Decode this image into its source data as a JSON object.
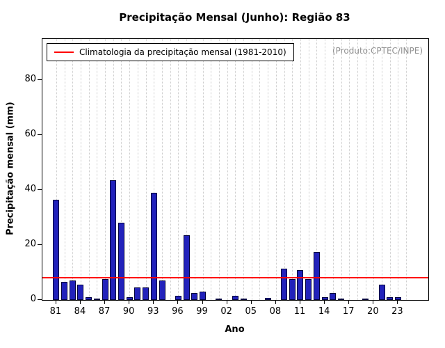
{
  "header": {
    "title": "Precipitação Mensal (Junho): Região 83"
  },
  "legend": {
    "label": "Climatologia da precipitação mensal (1981-2010)",
    "line_color": "#ff0000"
  },
  "annotation": "(Produto:CPTEC/INPE)",
  "chart_data": {
    "type": "bar",
    "title": "Precipitação Mensal (Junho): Região 83",
    "xlabel": "Ano",
    "ylabel": "Precipitação mensal (mm)",
    "ylim": [
      0,
      95
    ],
    "yticks": [
      0,
      20,
      40,
      60,
      80
    ],
    "xtick_labels": [
      "81",
      "84",
      "87",
      "90",
      "93",
      "96",
      "99",
      "02",
      "05",
      "08",
      "11",
      "14",
      "17",
      "20",
      "23"
    ],
    "years": [
      "81",
      "82",
      "83",
      "84",
      "85",
      "86",
      "87",
      "88",
      "89",
      "90",
      "91",
      "92",
      "93",
      "94",
      "95",
      "96",
      "97",
      "98",
      "99",
      "00",
      "01",
      "02",
      "03",
      "04",
      "05",
      "06",
      "07",
      "08",
      "09",
      "10",
      "11",
      "12",
      "13",
      "14",
      "15",
      "16",
      "17",
      "18",
      "19",
      "20",
      "21",
      "22",
      "23",
      "24"
    ],
    "values": [
      36.5,
      6.5,
      7,
      5.5,
      1,
      0.5,
      7.5,
      43.5,
      28,
      1,
      4.5,
      4.5,
      39,
      7,
      0,
      1.5,
      23.5,
      2.5,
      3,
      0,
      0.5,
      0,
      1.5,
      0.5,
      0,
      0,
      0.8,
      0,
      11.5,
      7.5,
      11,
      7.5,
      17.5,
      1,
      2.5,
      0.5,
      0,
      0,
      0.3,
      0,
      5.5,
      1,
      1,
      0
    ],
    "climatology_value": 8,
    "bar_color": "#2222bb",
    "bar_border_color": "#00003a",
    "climatology_color": "#ff0000",
    "grid": "vertical-dotted",
    "legend_position": "top-left"
  }
}
